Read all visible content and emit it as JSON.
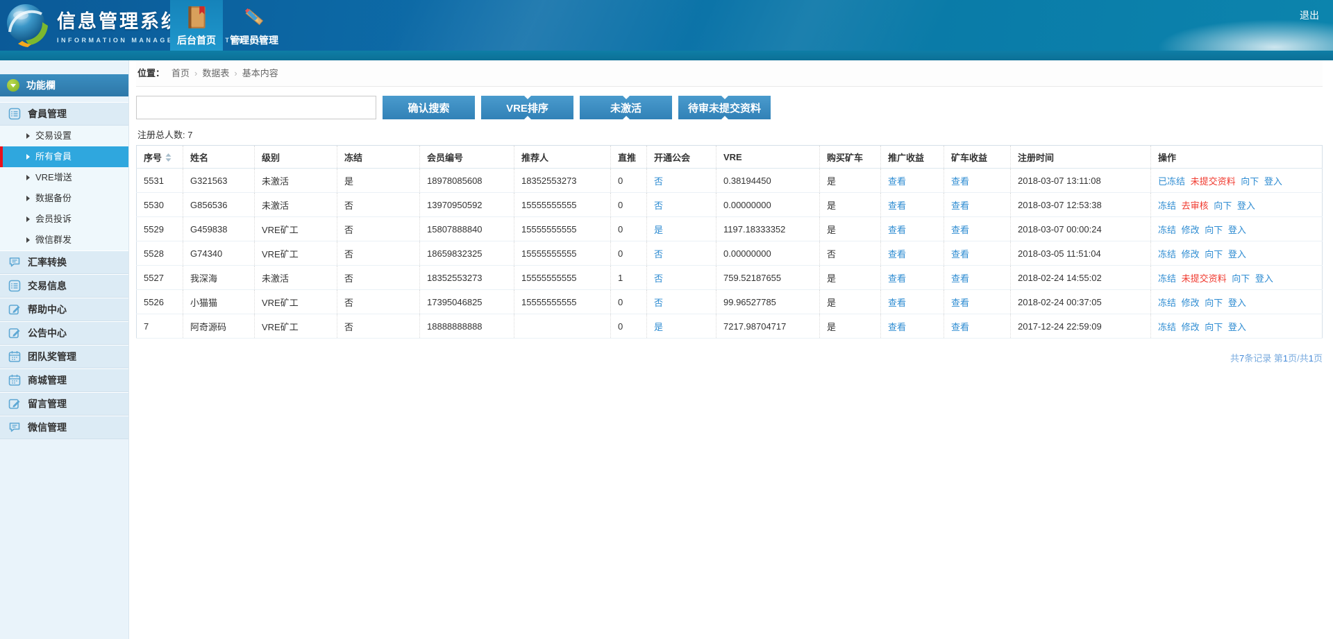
{
  "header": {
    "title": "信息管理系统界面",
    "subtitle": "INFORMATION MANAGEMENT SYSTEM GUI",
    "logout": "退出",
    "tabs": [
      {
        "label": "后台首页",
        "icon": "book",
        "active": true
      },
      {
        "label": "管理员管理",
        "icon": "admin-tools",
        "active": false
      }
    ]
  },
  "sidebar": {
    "panel_title": "功能欄",
    "member_group": {
      "label": "會員管理",
      "icon": "list"
    },
    "sub_items": [
      {
        "label": "交易设置"
      },
      {
        "label": "所有會員",
        "active": true
      },
      {
        "label": "VRE增送"
      },
      {
        "label": "数据备份"
      },
      {
        "label": "会员投诉"
      },
      {
        "label": "微信群发"
      }
    ],
    "main_items": [
      {
        "label": "汇率转换",
        "icon": "chat"
      },
      {
        "label": "交易信息",
        "icon": "list"
      },
      {
        "label": "帮助中心",
        "icon": "edit"
      },
      {
        "label": "公告中心",
        "icon": "edit"
      },
      {
        "label": "团队奖管理",
        "icon": "calendar"
      },
      {
        "label": "商城管理",
        "icon": "calendar"
      },
      {
        "label": "留言管理",
        "icon": "edit"
      },
      {
        "label": "微信管理",
        "icon": "chat"
      }
    ]
  },
  "breadcrumb": {
    "label": "位置：",
    "items": [
      "首页",
      "数据表",
      "基本内容"
    ]
  },
  "search": {
    "value": "",
    "buttons": [
      "确认搜索",
      "VRE排序",
      "未激活",
      "待审未提交资料"
    ]
  },
  "summary": {
    "total_label": "注册总人数:",
    "total": "7"
  },
  "table": {
    "columns": [
      "序号",
      "姓名",
      "级别",
      "冻结",
      "会员编号",
      "推荐人",
      "直推",
      "开通公会",
      "VRE",
      "购买矿车",
      "推广收益",
      "矿车收益",
      "注册时间",
      "操作"
    ],
    "view_label": "查看",
    "rows": [
      {
        "seq": "5531",
        "name": "G321563",
        "level": "未激活",
        "level_red": true,
        "frozen": "是",
        "frozen_red": true,
        "member_no": "18978085608",
        "referrer": "18352553273",
        "direct": "0",
        "guild": "否",
        "vre": "0.38194450",
        "mine_cart": "是",
        "reg_time": "2018-03-07 13:11:08",
        "actions": [
          {
            "text": "已冻结"
          },
          {
            "text": "未提交资料",
            "red": true
          },
          {
            "text": "向下"
          },
          {
            "text": "登入"
          }
        ]
      },
      {
        "seq": "5530",
        "name": "G856536",
        "level": "未激活",
        "level_red": true,
        "frozen": "否",
        "frozen_red": false,
        "member_no": "13970950592",
        "referrer": "15555555555",
        "direct": "0",
        "guild": "否",
        "vre": "0.00000000",
        "mine_cart": "是",
        "reg_time": "2018-03-07 12:53:38",
        "actions": [
          {
            "text": "冻结"
          },
          {
            "text": "去审核",
            "red": true
          },
          {
            "text": "向下"
          },
          {
            "text": "登入"
          }
        ]
      },
      {
        "seq": "5529",
        "name": "G459838",
        "level": "VRE矿工",
        "level_red": false,
        "frozen": "否",
        "frozen_red": false,
        "member_no": "15807888840",
        "referrer": "15555555555",
        "direct": "0",
        "guild": "是",
        "vre": "1197.18333352",
        "mine_cart": "是",
        "reg_time": "2018-03-07 00:00:24",
        "actions": [
          {
            "text": "冻结"
          },
          {
            "text": "修改"
          },
          {
            "text": "向下"
          },
          {
            "text": "登入"
          }
        ]
      },
      {
        "seq": "5528",
        "name": "G74340",
        "level": "VRE矿工",
        "level_red": false,
        "frozen": "否",
        "frozen_red": false,
        "member_no": "18659832325",
        "referrer": "15555555555",
        "direct": "0",
        "guild": "否",
        "vre": "0.00000000",
        "mine_cart": "否",
        "reg_time": "2018-03-05 11:51:04",
        "actions": [
          {
            "text": "冻结"
          },
          {
            "text": "修改"
          },
          {
            "text": "向下"
          },
          {
            "text": "登入"
          }
        ]
      },
      {
        "seq": "5527",
        "name": "我深海",
        "level": "未激活",
        "level_red": true,
        "frozen": "否",
        "frozen_red": false,
        "member_no": "18352553273",
        "referrer": "15555555555",
        "direct": "1",
        "guild": "否",
        "vre": "759.52187655",
        "mine_cart": "是",
        "reg_time": "2018-02-24 14:55:02",
        "actions": [
          {
            "text": "冻结"
          },
          {
            "text": "未提交资料",
            "red": true
          },
          {
            "text": "向下"
          },
          {
            "text": "登入"
          }
        ]
      },
      {
        "seq": "5526",
        "name": "小猫猫",
        "level": "VRE矿工",
        "level_red": false,
        "frozen": "否",
        "frozen_red": false,
        "member_no": "17395046825",
        "referrer": "15555555555",
        "direct": "0",
        "guild": "否",
        "vre": "99.96527785",
        "mine_cart": "是",
        "reg_time": "2018-02-24 00:37:05",
        "actions": [
          {
            "text": "冻结"
          },
          {
            "text": "修改"
          },
          {
            "text": "向下"
          },
          {
            "text": "登入"
          }
        ]
      },
      {
        "seq": "7",
        "name": "阿奇源码",
        "level": "VRE矿工",
        "level_red": false,
        "frozen": "否",
        "frozen_red": false,
        "member_no": "18888888888",
        "referrer": "",
        "direct": "0",
        "guild": "是",
        "vre": "7217.98704717",
        "mine_cart": "是",
        "reg_time": "2017-12-24 22:59:09",
        "actions": [
          {
            "text": "冻结"
          },
          {
            "text": "修改"
          },
          {
            "text": "向下"
          },
          {
            "text": "登入"
          }
        ]
      }
    ]
  },
  "pagination": {
    "segments": [
      {
        "text": "共"
      },
      {
        "text": "7",
        "strong": true
      },
      {
        "text": "条记录 第"
      },
      {
        "text": "1",
        "strong": true
      },
      {
        "text": "页/共"
      },
      {
        "text": "1",
        "strong": true
      },
      {
        "text": "页"
      }
    ]
  },
  "colors": {
    "accent_blue": "#2e8cd2",
    "alert_red": "#f0392e",
    "nav_green": "#5eb71e"
  }
}
